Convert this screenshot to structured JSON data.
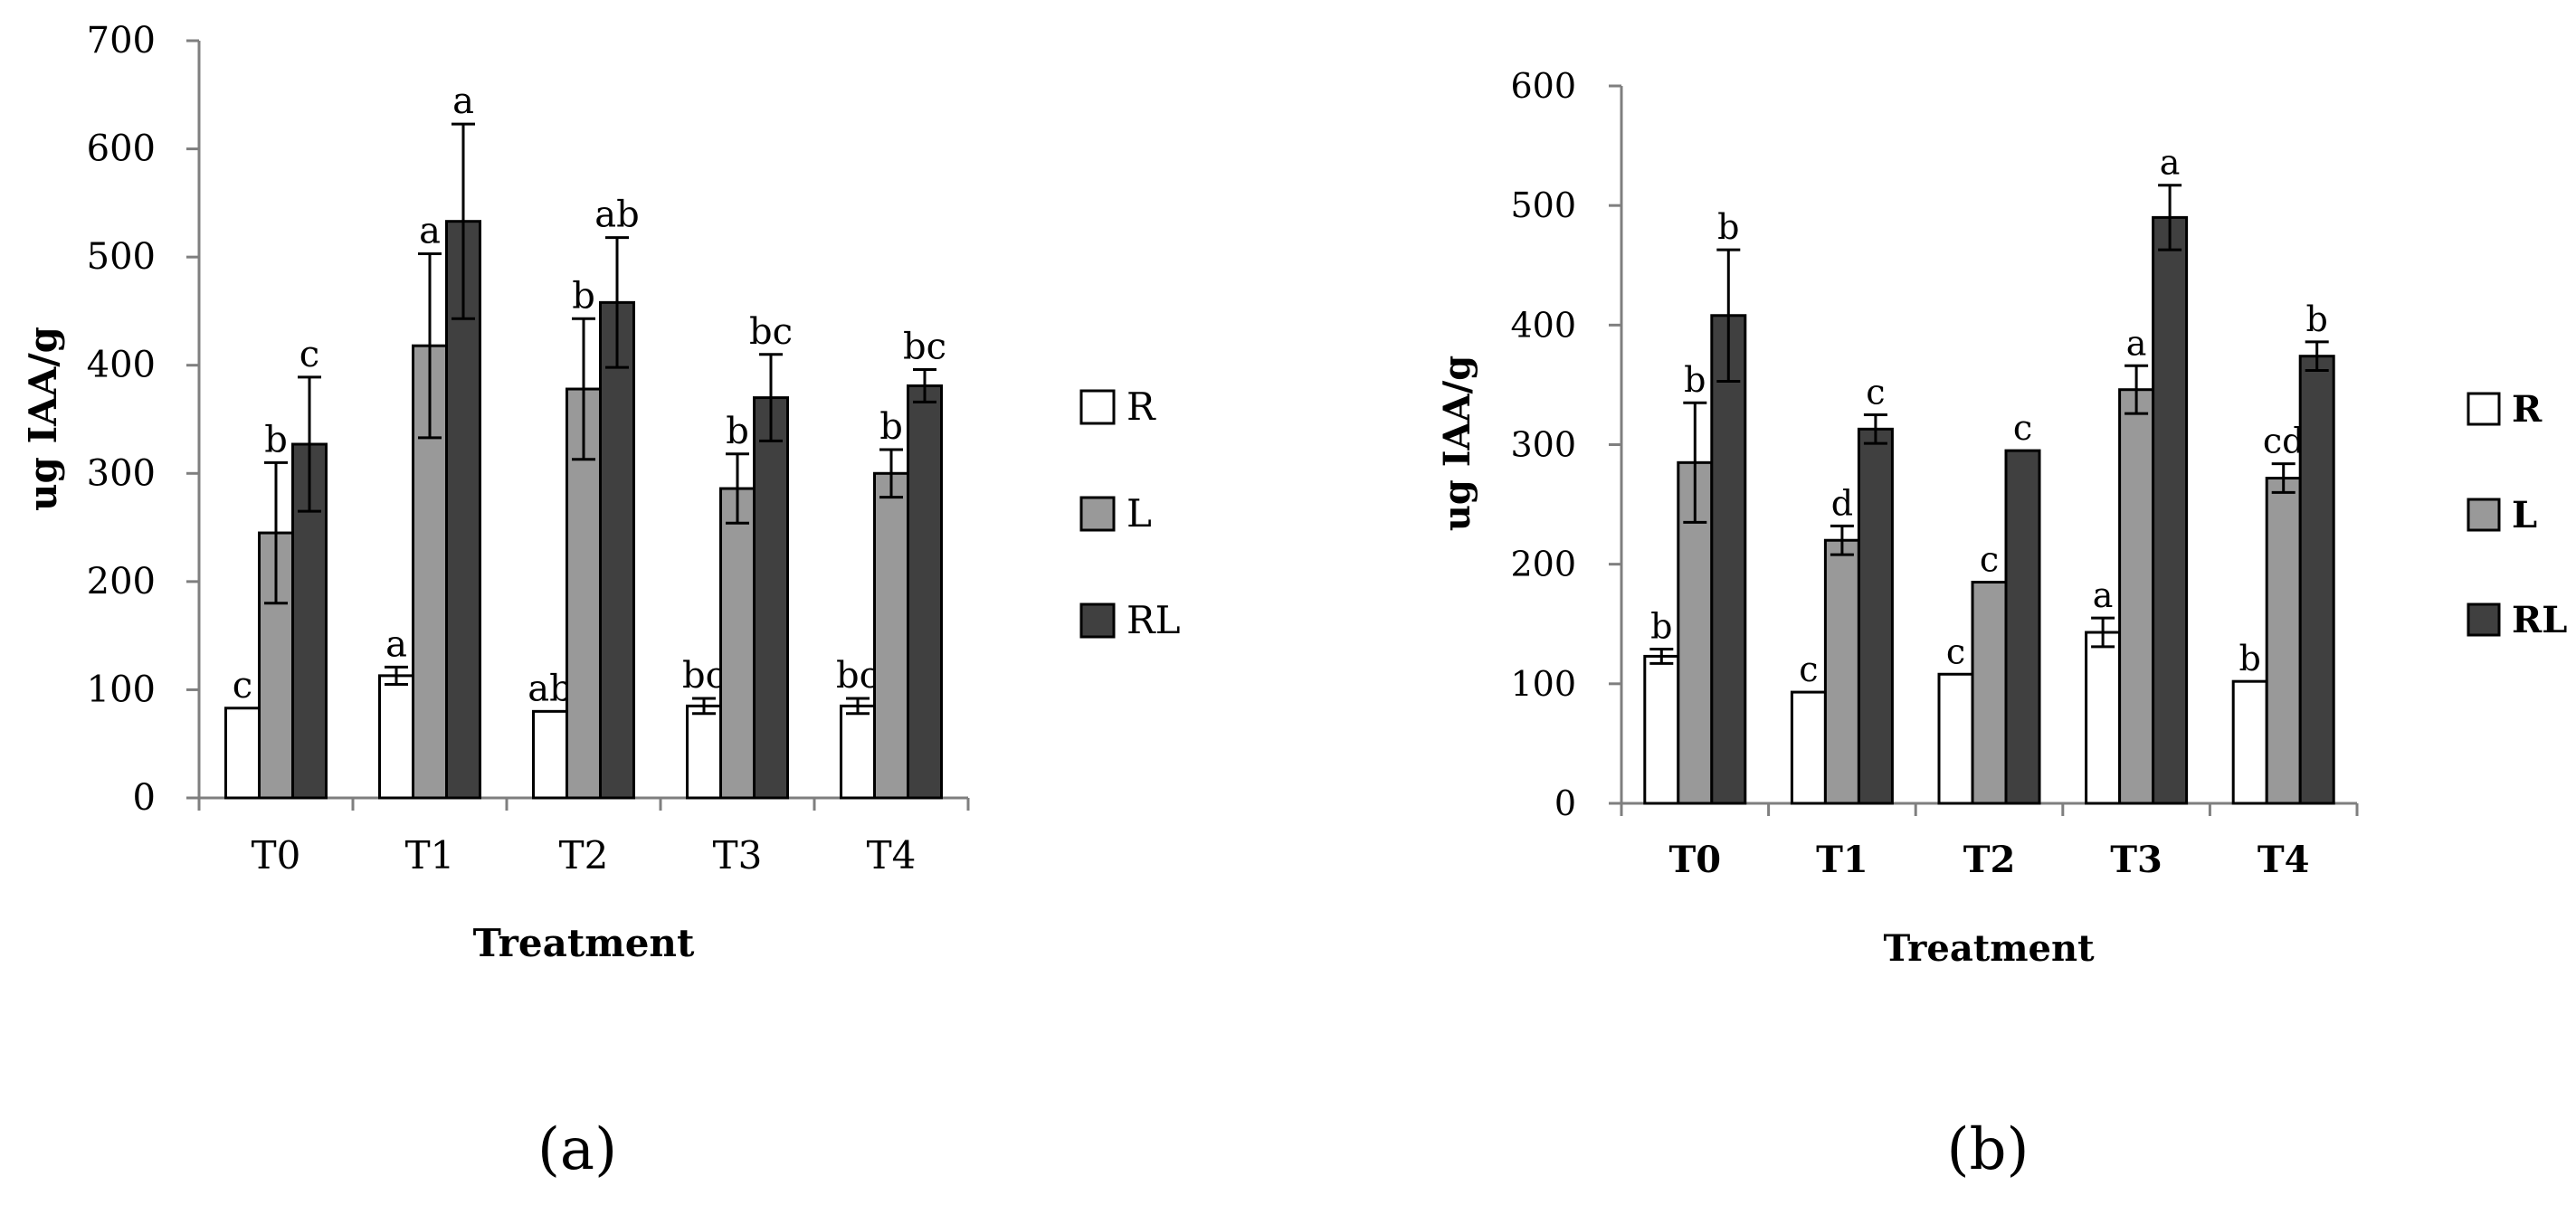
{
  "colors": {
    "R": "#ffffff",
    "L": "#999999",
    "RL": "#404040",
    "axis": "#7f7f7f"
  },
  "chart_data": [
    {
      "type": "bar",
      "panel_label": "(a)",
      "xlabel": "Treatment",
      "ylabel": "ug IAA/g",
      "ylim": [
        0,
        700
      ],
      "yticks": [
        "0",
        "100",
        "200",
        "300",
        "400",
        "500",
        "600",
        "700"
      ],
      "categories": [
        "T0",
        "T1",
        "T2",
        "T3",
        "T4"
      ],
      "legend_position": "right",
      "grid": false,
      "series": [
        {
          "name": "R",
          "values": [
            83,
            113,
            80,
            85,
            85
          ],
          "errors": [
            0,
            8,
            0,
            7,
            7
          ],
          "letters": [
            "c",
            "a",
            "ab",
            "bc",
            "bc"
          ]
        },
        {
          "name": "L",
          "values": [
            245,
            418,
            378,
            286,
            300
          ],
          "errors": [
            65,
            85,
            65,
            32,
            22
          ],
          "letters": [
            "b",
            "a",
            "b",
            "b",
            "b"
          ]
        },
        {
          "name": "RL",
          "values": [
            327,
            533,
            458,
            370,
            381
          ],
          "errors": [
            62,
            90,
            60,
            40,
            15
          ],
          "letters": [
            "c",
            "a",
            "ab",
            "bc",
            "bc"
          ]
        }
      ]
    },
    {
      "type": "bar",
      "panel_label": "(b)",
      "xlabel": "Treatment",
      "ylabel": "ug IAA/g",
      "ylim": [
        0,
        600
      ],
      "yticks": [
        "0",
        "100",
        "200",
        "300",
        "400",
        "500",
        "600"
      ],
      "categories": [
        "T0",
        "T1",
        "T2",
        "T3",
        "T4"
      ],
      "legend_position": "right",
      "grid": false,
      "series": [
        {
          "name": "R",
          "values": [
            123,
            93,
            108,
            143,
            102
          ],
          "errors": [
            6,
            0,
            0,
            12,
            0
          ],
          "letters": [
            "b",
            "c",
            "c",
            "a",
            "b"
          ]
        },
        {
          "name": "L",
          "values": [
            285,
            220,
            185,
            346,
            272
          ],
          "errors": [
            50,
            12,
            0,
            20,
            12
          ],
          "letters": [
            "b",
            "d",
            "c",
            "a",
            "cd"
          ]
        },
        {
          "name": "RL",
          "values": [
            408,
            313,
            295,
            490,
            374
          ],
          "errors": [
            55,
            12,
            0,
            27,
            12
          ],
          "letters": [
            "b",
            "c",
            "c",
            "a",
            "b"
          ]
        }
      ]
    }
  ]
}
